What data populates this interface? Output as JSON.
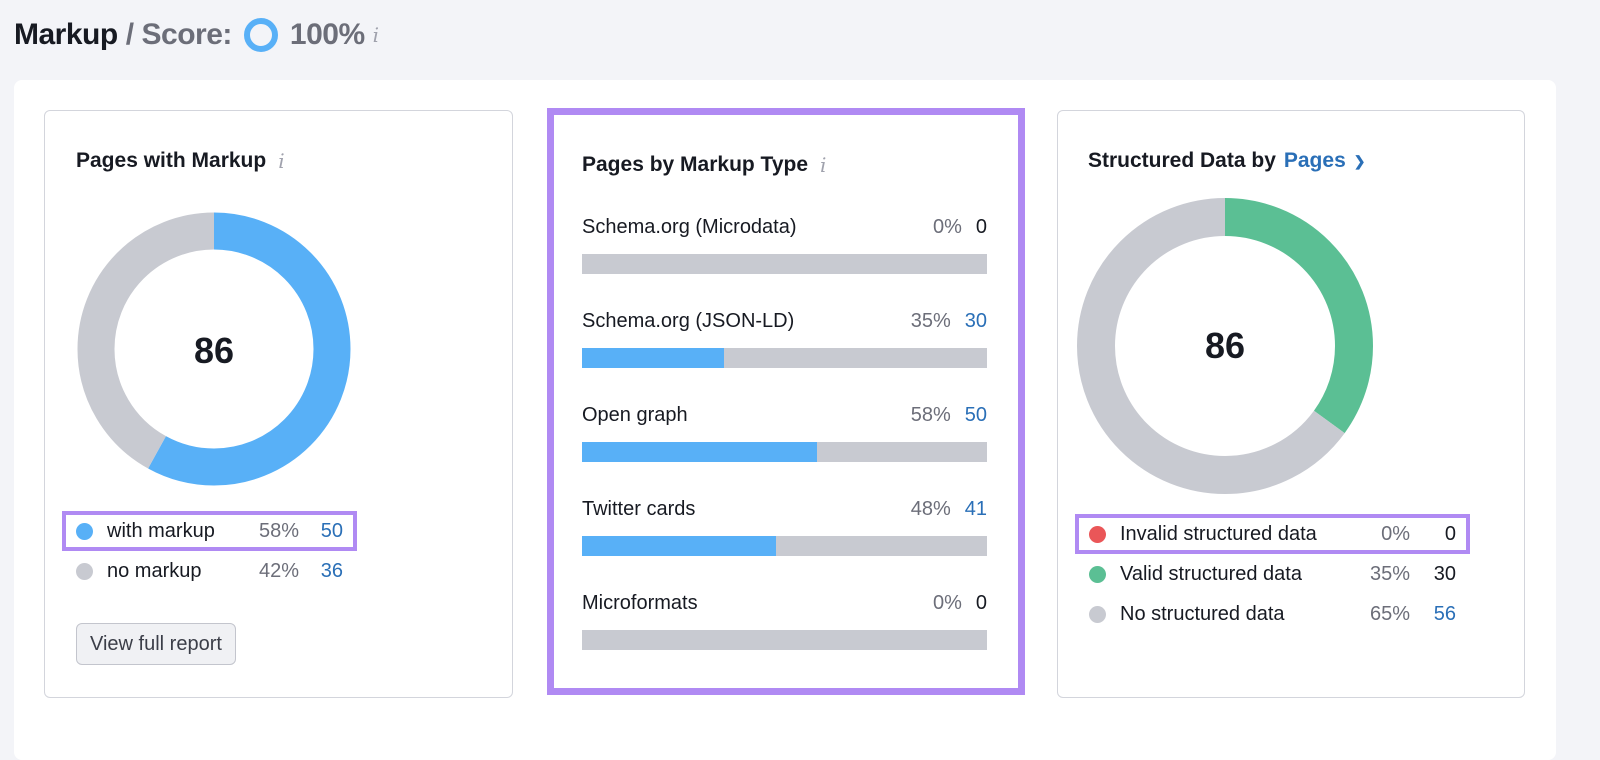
{
  "header": {
    "title": "Markup",
    "separator": "/",
    "score_label": "Score:",
    "score_value": "100%",
    "score_fraction": 1.0
  },
  "colors": {
    "blue": "#58b0f7",
    "gray": "#c8cad1",
    "green": "#5bbf94",
    "red": "#ea5658",
    "highlight": "#b08af3",
    "link": "#2a6fb7"
  },
  "pages_with_markup": {
    "title": "Pages with Markup",
    "total": "86",
    "legend": [
      {
        "label": "with markup",
        "pct": "58%",
        "count": "50",
        "color": "#58b0f7",
        "fraction": 0.58
      },
      {
        "label": "no markup",
        "pct": "42%",
        "count": "36",
        "color": "#c8cad1",
        "fraction": 0.42
      }
    ],
    "button": "View full report"
  },
  "markup_type": {
    "title": "Pages by Markup Type",
    "rows": [
      {
        "label": "Schema.org (Microdata)",
        "pct": "0%",
        "count": "0",
        "fraction": 0
      },
      {
        "label": "Schema.org (JSON-LD)",
        "pct": "35%",
        "count": "30",
        "fraction": 0.35
      },
      {
        "label": "Open graph",
        "pct": "58%",
        "count": "50",
        "fraction": 0.58
      },
      {
        "label": "Twitter cards",
        "pct": "48%",
        "count": "41",
        "fraction": 0.48
      },
      {
        "label": "Microformats",
        "pct": "0%",
        "count": "0",
        "fraction": 0
      }
    ]
  },
  "structured_data": {
    "title": "Structured Data by",
    "selector": "Pages",
    "total": "86",
    "legend": [
      {
        "label": "Invalid structured data",
        "pct": "0%",
        "count": "0",
        "color": "#ea5658",
        "fraction": 0
      },
      {
        "label": "Valid structured data",
        "pct": "35%",
        "count": "30",
        "color": "#5bbf94",
        "fraction": 0.35
      },
      {
        "label": "No structured data",
        "pct": "65%",
        "count": "56",
        "color": "#c8cad1",
        "fraction": 0.65
      }
    ]
  }
}
